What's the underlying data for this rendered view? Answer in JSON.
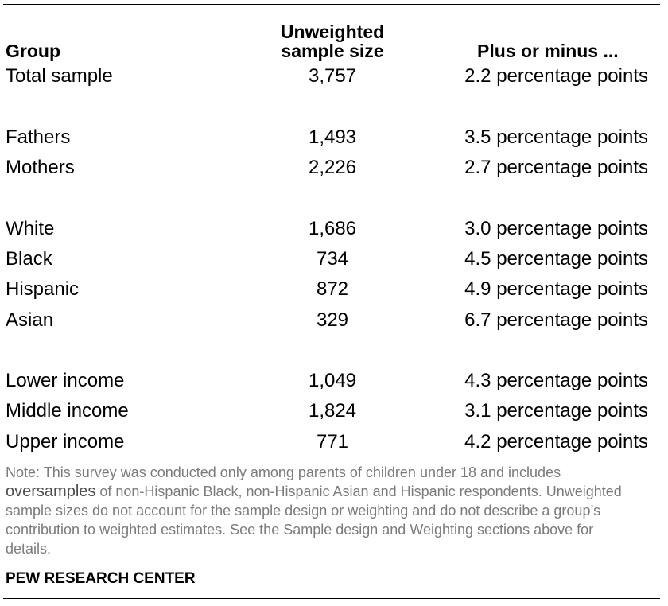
{
  "headers": {
    "group": "Group",
    "size_line1": "Unweighted",
    "size_line2": "sample size",
    "moe": "Plus or minus ..."
  },
  "rows": [
    {
      "group": "Total sample",
      "size": "3,757",
      "moe": "2.2 percentage points"
    },
    {
      "group": "Fathers",
      "size": "1,493",
      "moe": "3.5 percentage points"
    },
    {
      "group": "Mothers",
      "size": "2,226",
      "moe": "2.7 percentage points"
    },
    {
      "group": "White",
      "size": "1,686",
      "moe": "3.0 percentage points"
    },
    {
      "group": "Black",
      "size": "734",
      "moe": "4.5 percentage points"
    },
    {
      "group": "Hispanic",
      "size": "872",
      "moe": "4.9 percentage points"
    },
    {
      "group": "Asian",
      "size": "329",
      "moe": "6.7 percentage points"
    },
    {
      "group": "Lower income",
      "size": "1,049",
      "moe": "4.3 percentage points"
    },
    {
      "group": "Middle income",
      "size": "1,824",
      "moe": "3.1 percentage points"
    },
    {
      "group": "Upper income",
      "size": "771",
      "moe": "4.2 percentage points"
    }
  ],
  "note": {
    "part1": "Note: This survey was conducted only among parents of children under 18 and includes ",
    "emphasis": "oversamples",
    "part2": " of non-Hispanic Black, non-Hispanic Asian and Hispanic respondents. Unweighted sample sizes do not account for the sample design or weighting and do not describe a group’s contribution to weighted estimates. See the Sample design and Weighting sections above for details."
  },
  "source": "PEW RESEARCH CENTER"
}
